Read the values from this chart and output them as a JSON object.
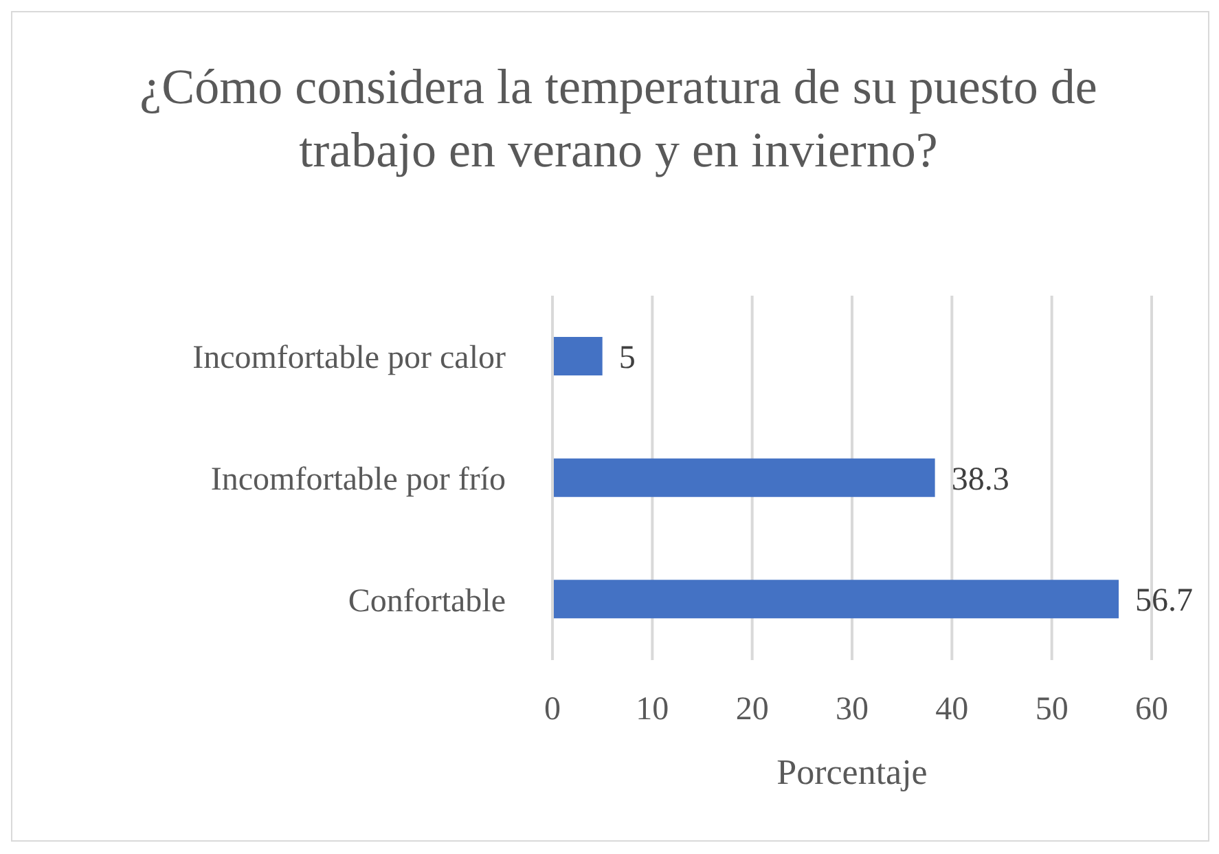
{
  "chart_data": {
    "type": "bar",
    "title": "¿Cómo considera la temperatura de su puesto de trabajo en verano y en invierno?",
    "xlabel": "Porcentaje",
    "orientation": "horizontal",
    "categories": [
      "Incomfortable por calor",
      "Incomfortable por frío",
      "Confortable"
    ],
    "values": [
      5,
      38.3,
      56.7
    ],
    "color": "#4472c4",
    "xlim": [
      0,
      60
    ],
    "xticks": [
      0,
      10,
      20,
      30,
      40,
      50,
      60
    ],
    "grid": "x",
    "data_labels": true
  }
}
